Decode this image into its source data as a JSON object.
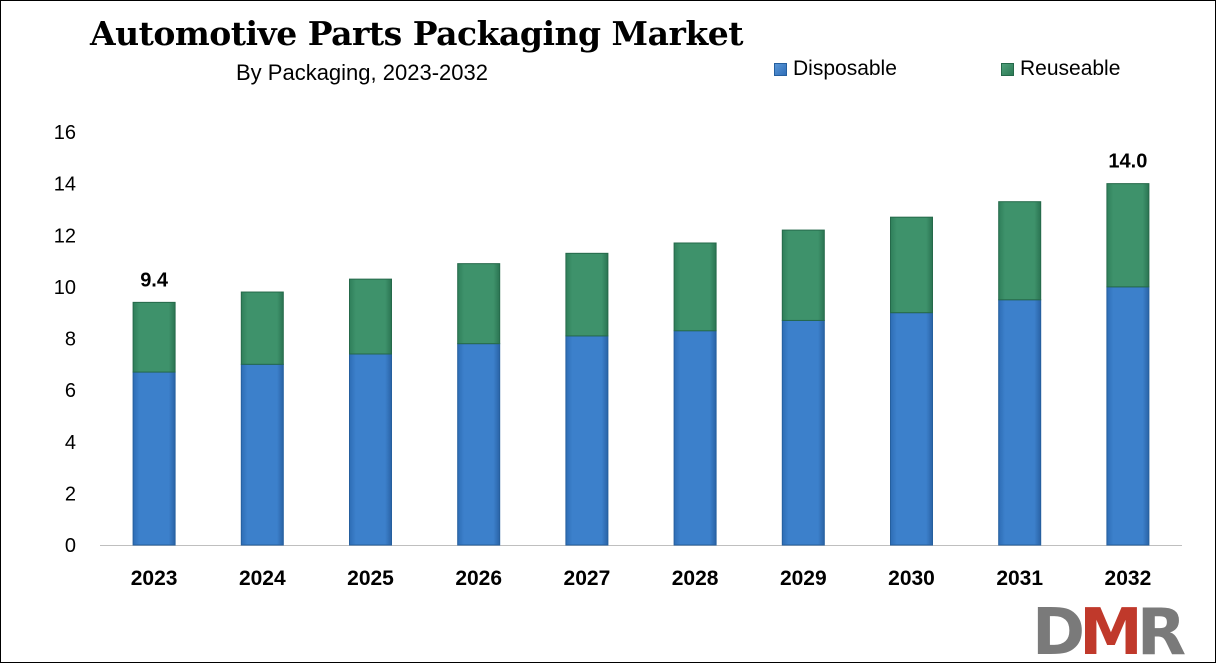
{
  "title": "Automotive Parts Packaging Market",
  "subtitle": "By Packaging, 2023-2032",
  "legend": {
    "disposable": "Disposable",
    "reuseable": "Reuseable"
  },
  "colors": {
    "disposable": "#3a7cc6",
    "reuseable": "#3b8e66",
    "logo_gray": "#7a7a7a",
    "logo_red": "#c0392b"
  },
  "logo_text": "DMR",
  "chart_data": {
    "type": "bar",
    "stacked": true,
    "title": "Automotive Parts Packaging Market",
    "subtitle": "By Packaging, 2023-2032",
    "categories": [
      "2023",
      "2024",
      "2025",
      "2026",
      "2027",
      "2028",
      "2029",
      "2030",
      "2031",
      "2032"
    ],
    "series": [
      {
        "name": "Disposable",
        "values": [
          6.7,
          7.0,
          7.4,
          7.8,
          8.1,
          8.3,
          8.7,
          9.0,
          9.5,
          10.0
        ]
      },
      {
        "name": "Reuseable",
        "values": [
          2.7,
          2.8,
          2.9,
          3.1,
          3.2,
          3.4,
          3.5,
          3.7,
          3.8,
          4.0
        ]
      }
    ],
    "totals_labels": [
      {
        "category": "2023",
        "text": "9.4"
      },
      {
        "category": "2032",
        "text": "14.0"
      }
    ],
    "ylim": [
      0,
      16
    ],
    "yticks": [
      0,
      2,
      4,
      6,
      8,
      10,
      12,
      14,
      16
    ],
    "xlabel": "",
    "ylabel": "",
    "grid": false,
    "legend_position": "top-right"
  }
}
